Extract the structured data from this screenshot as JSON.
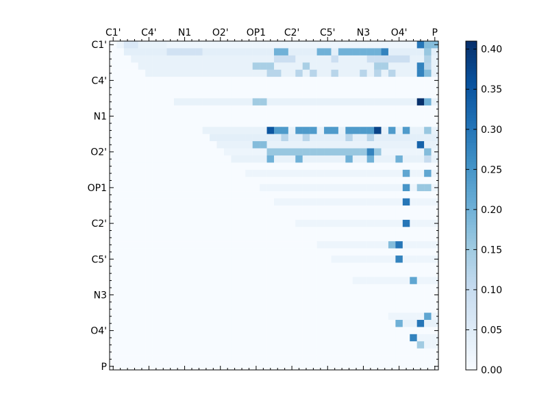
{
  "chart_data": {
    "type": "heatmap",
    "title": "",
    "xlabel": "",
    "ylabel": "",
    "grid": false,
    "size": 46,
    "x_tick_labels": [
      "C1'",
      "C4'",
      "N1",
      "O2'",
      "OP1",
      "C2'",
      "C5'",
      "N3",
      "O4'",
      "P"
    ],
    "y_tick_labels": [
      "C1'",
      "C4'",
      "N1",
      "O2'",
      "OP1",
      "C2'",
      "C5'",
      "N3",
      "O4'",
      "P"
    ],
    "x_tick_positions": [
      0,
      5,
      10,
      15,
      20,
      25,
      30,
      35,
      40,
      45
    ],
    "y_tick_positions": [
      0,
      5,
      10,
      15,
      20,
      25,
      30,
      35,
      40,
      45
    ],
    "colorbar": {
      "min": 0.0,
      "max": 0.41,
      "ticks": [
        "0.00",
        "0.05",
        "0.10",
        "0.15",
        "0.20",
        "0.25",
        "0.30",
        "0.35",
        "0.40"
      ],
      "colormap": "Blues",
      "colors": [
        "#f7fbff",
        "#deebf7",
        "#c6dbef",
        "#9ecae1",
        "#6baed6",
        "#4292c6",
        "#2171b5",
        "#08519c",
        "#08306b"
      ]
    },
    "row_profiles": [
      {
        "row": 0,
        "pattern": [
          {
            "from": 1,
            "to": 45,
            "base": 0.02
          },
          {
            "cols": [
              2,
              3
            ],
            "value": 0.06
          },
          {
            "cols": [
              4,
              5,
              6,
              7
            ],
            "value": 0.03
          },
          {
            "cols": [
              43
            ],
            "value": 0.3
          },
          {
            "cols": [
              44,
              45
            ],
            "value": 0.18
          }
        ]
      },
      {
        "row": 1,
        "pattern": [
          {
            "from": 2,
            "to": 45,
            "base": 0.04
          },
          {
            "cols": [
              8,
              9,
              10,
              11,
              12
            ],
            "value": 0.08
          },
          {
            "cols": [
              23,
              24,
              29,
              30,
              32,
              33,
              34,
              35,
              36,
              37,
              38
            ],
            "value": 0.2
          },
          {
            "cols": [
              38
            ],
            "value": 0.28
          },
          {
            "cols": [
              44
            ],
            "value": 0.16
          }
        ]
      },
      {
        "row": 2,
        "pattern": [
          {
            "from": 3,
            "to": 45,
            "base": 0.03
          },
          {
            "cols": [
              23,
              24,
              25,
              31,
              36,
              37,
              38,
              39,
              40,
              41
            ],
            "value": 0.09
          },
          {
            "cols": [
              44
            ],
            "value": 0.13
          }
        ]
      },
      {
        "row": 3,
        "pattern": [
          {
            "from": 4,
            "to": 45,
            "base": 0.03
          },
          {
            "cols": [
              20,
              21,
              22,
              27,
              37,
              38
            ],
            "value": 0.14
          },
          {
            "cols": [
              43
            ],
            "value": 0.28
          },
          {
            "cols": [
              44
            ],
            "value": 0.12
          }
        ]
      },
      {
        "row": 4,
        "pattern": [
          {
            "from": 5,
            "to": 45,
            "base": 0.03
          },
          {
            "cols": [
              22,
              23,
              26,
              28,
              31,
              35,
              37,
              39
            ],
            "value": 0.12
          },
          {
            "cols": [
              43
            ],
            "value": 0.28
          },
          {
            "cols": [
              44
            ],
            "value": 0.18
          }
        ]
      },
      {
        "row": 8,
        "pattern": [
          {
            "from": 9,
            "to": 45,
            "base": 0.03
          },
          {
            "cols": [
              20,
              21
            ],
            "value": 0.15
          },
          {
            "cols": [
              43
            ],
            "value": 0.41
          },
          {
            "cols": [
              44
            ],
            "value": 0.2
          }
        ]
      },
      {
        "row": 12,
        "pattern": [
          {
            "from": 13,
            "to": 45,
            "base": 0.03
          },
          {
            "cols": [
              22
            ],
            "value": 0.35
          },
          {
            "cols": [
              23,
              24,
              26,
              27,
              28,
              30,
              31,
              33,
              34,
              35,
              36,
              37,
              39,
              41
            ],
            "value": 0.24
          },
          {
            "cols": [
              37
            ],
            "value": 0.38
          },
          {
            "cols": [
              44
            ],
            "value": 0.16
          }
        ]
      },
      {
        "row": 13,
        "pattern": [
          {
            "from": 14,
            "to": 45,
            "base": 0.04
          },
          {
            "cols": [
              24,
              27,
              33,
              36
            ],
            "value": 0.12
          }
        ]
      },
      {
        "row": 14,
        "pattern": [
          {
            "from": 15,
            "to": 45,
            "base": 0.03
          },
          {
            "cols": [
              20,
              21
            ],
            "value": 0.18
          },
          {
            "cols": [
              43
            ],
            "value": 0.33
          }
        ]
      },
      {
        "row": 15,
        "pattern": [
          {
            "from": 16,
            "to": 45,
            "base": 0.02
          },
          {
            "cols": [
              22,
              23,
              24,
              25,
              26,
              27,
              28,
              29,
              30,
              31,
              32,
              33,
              34,
              35,
              36,
              37
            ],
            "value": 0.16
          },
          {
            "cols": [
              36
            ],
            "value": 0.28
          },
          {
            "cols": [
              44
            ],
            "value": 0.18
          }
        ]
      },
      {
        "row": 16,
        "pattern": [
          {
            "from": 17,
            "to": 45,
            "base": 0.03
          },
          {
            "cols": [
              22,
              26,
              33,
              36,
              40
            ],
            "value": 0.2
          },
          {
            "cols": [
              44
            ],
            "value": 0.1
          }
        ]
      },
      {
        "row": 18,
        "pattern": [
          {
            "from": 19,
            "to": 45,
            "base": 0.02
          },
          {
            "cols": [
              41
            ],
            "value": 0.22
          },
          {
            "cols": [
              44
            ],
            "value": 0.22
          }
        ]
      },
      {
        "row": 20,
        "pattern": [
          {
            "from": 21,
            "to": 45,
            "base": 0.02
          },
          {
            "cols": [
              41
            ],
            "value": 0.25
          },
          {
            "cols": [
              43,
              44
            ],
            "value": 0.16
          }
        ]
      },
      {
        "row": 22,
        "pattern": [
          {
            "from": 23,
            "to": 45,
            "base": 0.02
          },
          {
            "cols": [
              41
            ],
            "value": 0.3
          }
        ]
      },
      {
        "row": 25,
        "pattern": [
          {
            "from": 26,
            "to": 45,
            "base": 0.02
          },
          {
            "cols": [
              41
            ],
            "value": 0.3
          }
        ]
      },
      {
        "row": 28,
        "pattern": [
          {
            "from": 29,
            "to": 45,
            "base": 0.02
          },
          {
            "cols": [
              40
            ],
            "value": 0.3
          },
          {
            "cols": [
              39
            ],
            "value": 0.18
          }
        ]
      },
      {
        "row": 30,
        "pattern": [
          {
            "from": 31,
            "to": 45,
            "base": 0.02
          },
          {
            "cols": [
              40
            ],
            "value": 0.28
          }
        ]
      },
      {
        "row": 33,
        "pattern": [
          {
            "from": 34,
            "to": 45,
            "base": 0.02
          },
          {
            "cols": [
              42
            ],
            "value": 0.22
          }
        ]
      },
      {
        "row": 38,
        "pattern": [
          {
            "from": 39,
            "to": 45,
            "base": 0.02
          },
          {
            "cols": [
              44
            ],
            "value": 0.22
          }
        ]
      },
      {
        "row": 39,
        "pattern": [
          {
            "from": 40,
            "to": 45,
            "base": 0.03
          },
          {
            "cols": [
              40
            ],
            "value": 0.2
          },
          {
            "cols": [
              43
            ],
            "value": 0.3
          }
        ]
      },
      {
        "row": 41,
        "pattern": [
          {
            "from": 42,
            "to": 45,
            "base": 0.02
          },
          {
            "cols": [
              42
            ],
            "value": 0.28
          }
        ]
      },
      {
        "row": 42,
        "pattern": [
          {
            "from": 43,
            "to": 45,
            "base": 0.02
          },
          {
            "cols": [
              43
            ],
            "value": 0.15
          }
        ]
      }
    ]
  }
}
